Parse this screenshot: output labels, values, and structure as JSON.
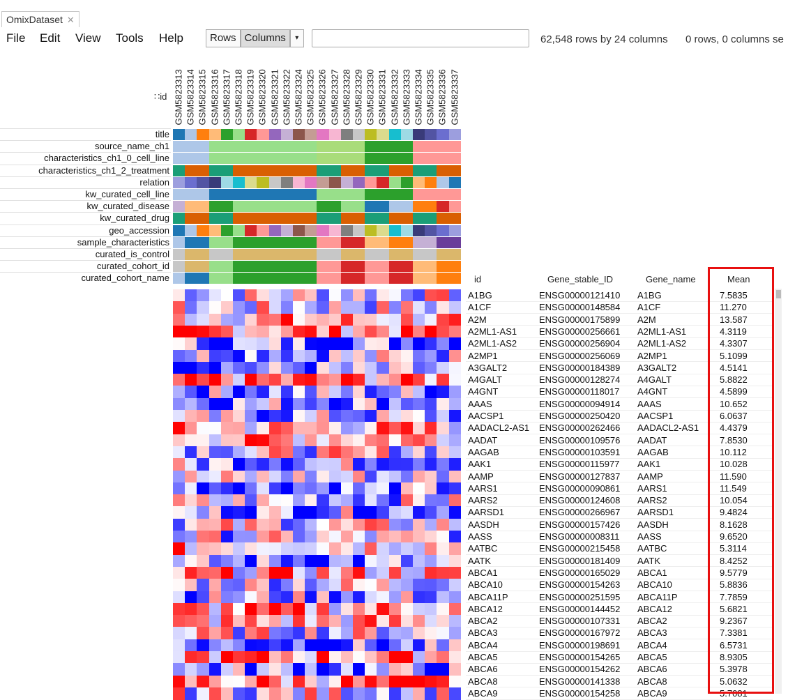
{
  "window": {
    "tab_title": "OmixDataset",
    "close_glyph": "✕"
  },
  "menu": [
    "File",
    "Edit",
    "View",
    "Tools",
    "Help"
  ],
  "toolbar": {
    "rows_label": "Rows",
    "columns_label": "Columns",
    "dropdown_glyph": "▾",
    "search_value": "",
    "dimensions_text": "62,548 rows by 24 columns",
    "selection_text": "0 rows, 0 columns se"
  },
  "heatmap": {
    "id_header": "∷id",
    "samples": [
      "GSM5823313",
      "GSM5823314",
      "GSM5823315",
      "GSM5823316",
      "GSM5823317",
      "GSM5823318",
      "GSM5823319",
      "GSM5823320",
      "GSM5823321",
      "GSM5823322",
      "GSM5823324",
      "GSM5823325",
      "GSM5823326",
      "GSM5823327",
      "GSM5823328",
      "GSM5823329",
      "GSM5823330",
      "GSM5823331",
      "GSM5823332",
      "GSM5823333",
      "GSM5823334",
      "GSM5823335",
      "GSM5823336",
      "GSM5823337"
    ],
    "annotation_rows": [
      {
        "label": "title",
        "colors": [
          "#1f77b4",
          "#aec7e8",
          "#ff7f0e",
          "#ffbb78",
          "#2ca02c",
          "#98df8a",
          "#d62728",
          "#ff9896",
          "#9467bd",
          "#c5b0d5",
          "#8c564b",
          "#c49c94",
          "#e377c2",
          "#f7b6d2",
          "#7f7f7f",
          "#c7c7c7",
          "#bcbd22",
          "#dbdb8d",
          "#17becf",
          "#9edae5",
          "#393b79",
          "#5254a3",
          "#6b6ecf",
          "#9c9ede"
        ]
      },
      {
        "label": "source_name_ch1",
        "colors": [
          "#aec7e8",
          "#aec7e8",
          "#aec7e8",
          "#98df8a",
          "#98df8a",
          "#98df8a",
          "#98df8a",
          "#98df8a",
          "#98df8a",
          "#98df8a",
          "#98df8a",
          "#98df8a",
          "#a9dc7a",
          "#a9dc7a",
          "#a9dc7a",
          "#a9dc7a",
          "#2ca02c",
          "#2ca02c",
          "#2ca02c",
          "#2ca02c",
          "#ff9896",
          "#ff9896",
          "#ff9896",
          "#ff9896"
        ]
      },
      {
        "label": "characteristics_ch1_0_cell_line",
        "colors": [
          "#aec7e8",
          "#aec7e8",
          "#aec7e8",
          "#98df8a",
          "#98df8a",
          "#98df8a",
          "#98df8a",
          "#98df8a",
          "#98df8a",
          "#98df8a",
          "#98df8a",
          "#98df8a",
          "#a9dc7a",
          "#a9dc7a",
          "#a9dc7a",
          "#a9dc7a",
          "#2ca02c",
          "#2ca02c",
          "#2ca02c",
          "#2ca02c",
          "#ff9896",
          "#ff9896",
          "#ff9896",
          "#ff9896"
        ]
      },
      {
        "label": "characteristics_ch1_2_treatment",
        "colors": [
          "#1b9e77",
          "#d95f02",
          "#d95f02",
          "#1b9e77",
          "#1b9e77",
          "#d95f02",
          "#d95f02",
          "#d95f02",
          "#d95f02",
          "#d95f02",
          "#d95f02",
          "#d95f02",
          "#1b9e77",
          "#1b9e77",
          "#d95f02",
          "#d95f02",
          "#1b9e77",
          "#1b9e77",
          "#d95f02",
          "#d95f02",
          "#1b9e77",
          "#1b9e77",
          "#d95f02",
          "#d95f02"
        ]
      },
      {
        "label": "relation",
        "colors": [
          "#9c9ede",
          "#6b6ecf",
          "#5254a3",
          "#393b79",
          "#9edae5",
          "#17becf",
          "#dbdb8d",
          "#bcbd22",
          "#c7c7c7",
          "#7f7f7f",
          "#f7b6d2",
          "#e377c2",
          "#c49c94",
          "#8c564b",
          "#c5b0d5",
          "#9467bd",
          "#ff9896",
          "#d62728",
          "#98df8a",
          "#2ca02c",
          "#ffbb78",
          "#ff7f0e",
          "#aec7e8",
          "#1f77b4"
        ]
      },
      {
        "label": "kw_curated_cell_line",
        "colors": [
          "#aec7e8",
          "#aec7e8",
          "#aec7e8",
          "#1f77b4",
          "#1f77b4",
          "#1f77b4",
          "#1f77b4",
          "#1f77b4",
          "#1f77b4",
          "#1f77b4",
          "#1f77b4",
          "#1f77b4",
          "#98df8a",
          "#98df8a",
          "#98df8a",
          "#98df8a",
          "#2ca02c",
          "#2ca02c",
          "#2ca02c",
          "#2ca02c",
          "#ff9896",
          "#ff9896",
          "#ff9896",
          "#ff9896"
        ]
      },
      {
        "label": "kw_curated_disease",
        "colors": [
          "#c5b0d5",
          "#ffbb78",
          "#ffbb78",
          "#2ca02c",
          "#2ca02c",
          "#98df8a",
          "#98df8a",
          "#98df8a",
          "#98df8a",
          "#98df8a",
          "#98df8a",
          "#98df8a",
          "#2ca02c",
          "#2ca02c",
          "#98df8a",
          "#98df8a",
          "#1f77b4",
          "#1f77b4",
          "#aec7e8",
          "#aec7e8",
          "#ff7f0e",
          "#ff7f0e",
          "#d62728",
          "#ff9896"
        ]
      },
      {
        "label": "kw_curated_drug",
        "colors": [
          "#1b9e77",
          "#d95f02",
          "#d95f02",
          "#1b9e77",
          "#1b9e77",
          "#d95f02",
          "#d95f02",
          "#d95f02",
          "#d95f02",
          "#d95f02",
          "#d95f02",
          "#d95f02",
          "#1b9e77",
          "#1b9e77",
          "#d95f02",
          "#d95f02",
          "#1b9e77",
          "#1b9e77",
          "#d95f02",
          "#d95f02",
          "#1b9e77",
          "#1b9e77",
          "#d95f02",
          "#d95f02"
        ]
      },
      {
        "label": "geo_accession",
        "colors": [
          "#1f77b4",
          "#aec7e8",
          "#ff7f0e",
          "#ffbb78",
          "#2ca02c",
          "#98df8a",
          "#d62728",
          "#ff9896",
          "#9467bd",
          "#c5b0d5",
          "#8c564b",
          "#c49c94",
          "#e377c2",
          "#f7b6d2",
          "#7f7f7f",
          "#c7c7c7",
          "#bcbd22",
          "#dbdb8d",
          "#17becf",
          "#9edae5",
          "#393b79",
          "#5254a3",
          "#6b6ecf",
          "#9c9ede"
        ]
      },
      {
        "label": "sample_characteristics",
        "colors": [
          "#aec7e8",
          "#1f77b4",
          "#1f77b4",
          "#98df8a",
          "#98df8a",
          "#2ca02c",
          "#2ca02c",
          "#2ca02c",
          "#2ca02c",
          "#2ca02c",
          "#2ca02c",
          "#2ca02c",
          "#ff9896",
          "#ff9896",
          "#d62728",
          "#d62728",
          "#ffbb78",
          "#ffbb78",
          "#ff7f0e",
          "#ff7f0e",
          "#c5b0d5",
          "#c5b0d5",
          "#6a3d9a",
          "#6a3d9a"
        ]
      },
      {
        "label": "curated_is_control",
        "colors": [
          "#c7c7c7",
          "#dbb76b",
          "#dbb76b",
          "#c7c7c7",
          "#c7c7c7",
          "#dbb76b",
          "#dbb76b",
          "#dbb76b",
          "#dbb76b",
          "#dbb76b",
          "#dbb76b",
          "#dbb76b",
          "#c7c7c7",
          "#c7c7c7",
          "#dbb76b",
          "#dbb76b",
          "#c7c7c7",
          "#c7c7c7",
          "#dbb76b",
          "#dbb76b",
          "#c7c7c7",
          "#c7c7c7",
          "#dbb76b",
          "#dbb76b"
        ]
      },
      {
        "label": "curated_cohort_id",
        "colors": [
          "#c7c7c7",
          "#dbb76b",
          "#dbb76b",
          "#98df8a",
          "#98df8a",
          "#2ca02c",
          "#2ca02c",
          "#2ca02c",
          "#2ca02c",
          "#2ca02c",
          "#2ca02c",
          "#2ca02c",
          "#ff9896",
          "#ff9896",
          "#d62728",
          "#d62728",
          "#ff9896",
          "#ff9896",
          "#d62728",
          "#d62728",
          "#ffbb78",
          "#ffbb78",
          "#ff7f0e",
          "#ff7f0e"
        ]
      },
      {
        "label": "curated_cohort_name",
        "colors": [
          "#aec7e8",
          "#1f77b4",
          "#1f77b4",
          "#98df8a",
          "#98df8a",
          "#2ca02c",
          "#2ca02c",
          "#2ca02c",
          "#2ca02c",
          "#2ca02c",
          "#2ca02c",
          "#2ca02c",
          "#ff9896",
          "#ff9896",
          "#d62728",
          "#d62728",
          "#ff9896",
          "#ff9896",
          "#d62728",
          "#d62728",
          "#ffbb78",
          "#ffbb78",
          "#ff7f0e",
          "#ff7f0e"
        ]
      }
    ]
  },
  "table": {
    "columns": [
      "id",
      "Gene_stable_ID",
      "Gene_name",
      "Mean"
    ],
    "rows": [
      [
        "A1BG",
        "ENSG00000121410",
        "A1BG",
        "7.5835"
      ],
      [
        "A1CF",
        "ENSG00000148584",
        "A1CF",
        "11.270"
      ],
      [
        "A2M",
        "ENSG00000175899",
        "A2M",
        "13.587"
      ],
      [
        "A2ML1-AS1",
        "ENSG00000256661",
        "A2ML1-AS1",
        "4.3119"
      ],
      [
        "A2ML1-AS2",
        "ENSG00000256904",
        "A2ML1-AS2",
        "4.3307"
      ],
      [
        "A2MP1",
        "ENSG00000256069",
        "A2MP1",
        "5.1099"
      ],
      [
        "A3GALT2",
        "ENSG00000184389",
        "A3GALT2",
        "4.5141"
      ],
      [
        "A4GALT",
        "ENSG00000128274",
        "A4GALT",
        "5.8822"
      ],
      [
        "A4GNT",
        "ENSG00000118017",
        "A4GNT",
        "4.5899"
      ],
      [
        "AAAS",
        "ENSG00000094914",
        "AAAS",
        "10.652"
      ],
      [
        "AACSP1",
        "ENSG00000250420",
        "AACSP1",
        "6.0637"
      ],
      [
        "AADACL2-AS1",
        "ENSG00000262466",
        "AADACL2-AS1",
        "4.4379"
      ],
      [
        "AADAT",
        "ENSG00000109576",
        "AADAT",
        "7.8530"
      ],
      [
        "AAGAB",
        "ENSG00000103591",
        "AAGAB",
        "10.112"
      ],
      [
        "AAK1",
        "ENSG00000115977",
        "AAK1",
        "10.028"
      ],
      [
        "AAMP",
        "ENSG00000127837",
        "AAMP",
        "11.590"
      ],
      [
        "AARS1",
        "ENSG00000090861",
        "AARS1",
        "11.549"
      ],
      [
        "AARS2",
        "ENSG00000124608",
        "AARS2",
        "10.054"
      ],
      [
        "AARSD1",
        "ENSG00000266967",
        "AARSD1",
        "9.4824"
      ],
      [
        "AASDH",
        "ENSG00000157426",
        "AASDH",
        "8.1628"
      ],
      [
        "AASS",
        "ENSG00000008311",
        "AASS",
        "9.6520"
      ],
      [
        "AATBC",
        "ENSG00000215458",
        "AATBC",
        "5.3114"
      ],
      [
        "AATK",
        "ENSG00000181409",
        "AATK",
        "8.4252"
      ],
      [
        "ABCA1",
        "ENSG00000165029",
        "ABCA1",
        "9.5779"
      ],
      [
        "ABCA10",
        "ENSG00000154263",
        "ABCA10",
        "5.8836"
      ],
      [
        "ABCA11P",
        "ENSG00000251595",
        "ABCA11P",
        "7.7859"
      ],
      [
        "ABCA12",
        "ENSG00000144452",
        "ABCA12",
        "5.6821"
      ],
      [
        "ABCA2",
        "ENSG00000107331",
        "ABCA2",
        "9.2367"
      ],
      [
        "ABCA3",
        "ENSG00000167972",
        "ABCA3",
        "7.3381"
      ],
      [
        "ABCA4",
        "ENSG00000198691",
        "ABCA4",
        "6.5731"
      ],
      [
        "ABCA5",
        "ENSG00000154265",
        "ABCA5",
        "8.9305"
      ],
      [
        "ABCA6",
        "ENSG00000154262",
        "ABCA6",
        "5.3978"
      ],
      [
        "ABCA8",
        "ENSG00000141338",
        "ABCA8",
        "5.0632"
      ],
      [
        "ABCA9",
        "ENSG00000154258",
        "ABCA9",
        "5.7081"
      ]
    ]
  }
}
